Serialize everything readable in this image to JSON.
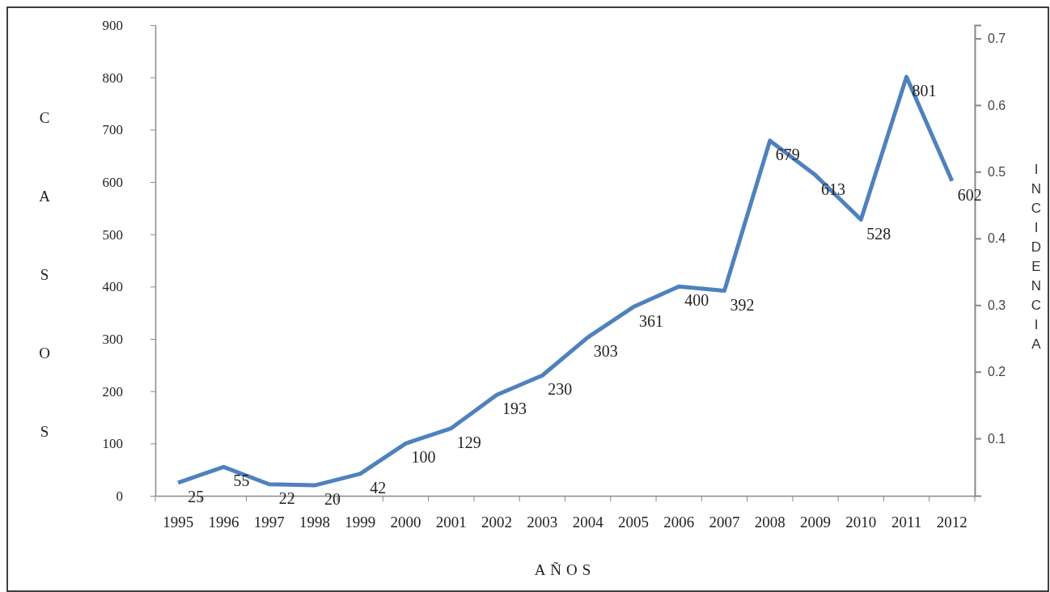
{
  "chart_data": {
    "type": "line",
    "xlabel": "AÑOS",
    "ylabel": "CASOS",
    "y2label": "INCIDENCIA",
    "categories": [
      "1995",
      "1996",
      "1997",
      "1998",
      "1999",
      "2000",
      "2001",
      "2002",
      "2003",
      "2004",
      "2005",
      "2006",
      "2007",
      "2008",
      "2009",
      "2010",
      "2011",
      "2012"
    ],
    "series": [
      {
        "color": "#4f81bd",
        "values": [
          25,
          55,
          22,
          20,
          42,
          100,
          129,
          193,
          230,
          303,
          361,
          400,
          392,
          679,
          613,
          528,
          801,
          602
        ]
      }
    ],
    "ylim": [
      0,
      900
    ],
    "yticks": [
      0,
      100,
      200,
      300,
      400,
      500,
      600,
      700,
      800,
      900
    ],
    "y2lim": [
      0.014,
      0.72
    ],
    "y2ticks": [
      0.1,
      0.2,
      0.3,
      0.4,
      0.5,
      0.6,
      0.7
    ],
    "data_labels": true,
    "grid": false,
    "legend": false,
    "marker": "none",
    "line_style": "solid"
  }
}
